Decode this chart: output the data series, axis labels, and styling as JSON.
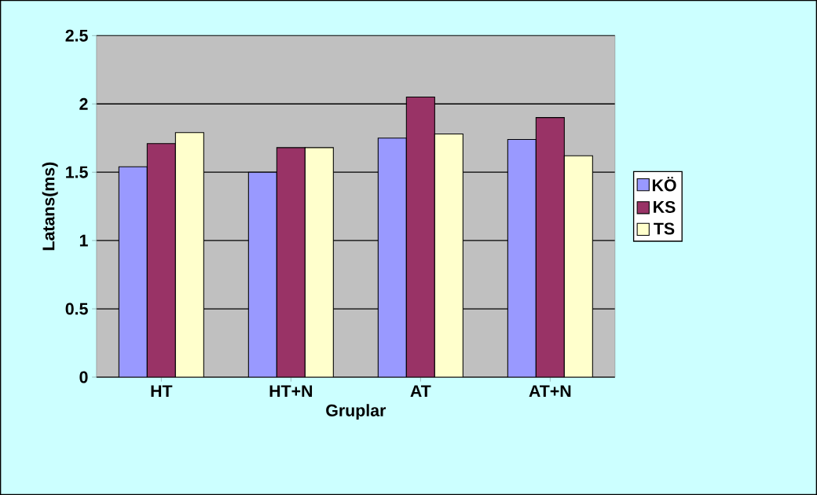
{
  "chart_data": {
    "type": "bar",
    "xlabel": "Gruplar",
    "ylabel": "Latans(ms)",
    "categories": [
      "HT",
      "HT+N",
      "AT",
      "AT+N"
    ],
    "series": [
      {
        "name": "KÖ",
        "color": "#9999ff",
        "values": [
          1.54,
          1.5,
          1.75,
          1.74
        ]
      },
      {
        "name": "KS",
        "color": "#993366",
        "values": [
          1.71,
          1.68,
          2.05,
          1.9
        ]
      },
      {
        "name": "TS",
        "color": "#ffffcc",
        "values": [
          1.79,
          1.68,
          1.78,
          1.62
        ]
      }
    ],
    "ylim": [
      0,
      2.5
    ],
    "yticks": [
      0,
      0.5,
      1,
      1.5,
      2,
      2.5
    ],
    "grid": "y",
    "legend": "right"
  }
}
